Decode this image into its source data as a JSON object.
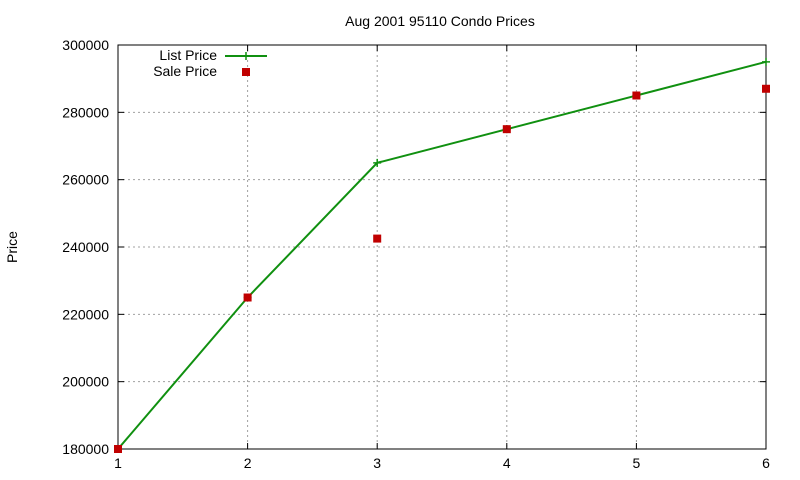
{
  "chart_data": {
    "type": "line",
    "title": "Aug 2001 95110 Condo Prices",
    "xlabel": "",
    "ylabel": "Price",
    "xlim": [
      1,
      6
    ],
    "ylim": [
      180000,
      300000
    ],
    "x_ticks": [
      "1",
      "2",
      "3",
      "4",
      "5",
      "6"
    ],
    "y_ticks": [
      "180000",
      "200000",
      "220000",
      "240000",
      "260000",
      "280000",
      "300000"
    ],
    "grid": true,
    "legend_position": "top-left",
    "series": [
      {
        "name": "List Price",
        "style": "line+cross",
        "color": "#109010",
        "x": [
          1,
          2,
          3,
          4,
          5,
          6
        ],
        "values": [
          180000,
          225000,
          265000,
          275000,
          285000,
          295000
        ]
      },
      {
        "name": "Sale Price",
        "style": "square-points",
        "color": "#c00000",
        "x": [
          1,
          2,
          3,
          4,
          5,
          6
        ],
        "values": [
          180000,
          225000,
          242500,
          275000,
          285000,
          287000
        ]
      }
    ]
  }
}
